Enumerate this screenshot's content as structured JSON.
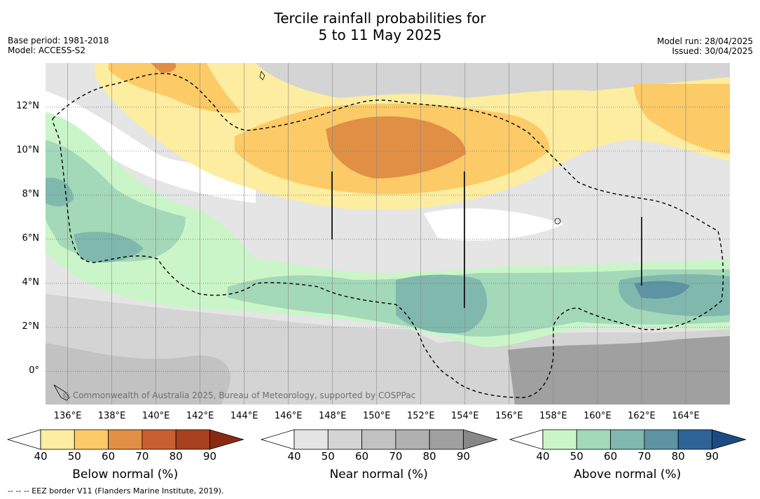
{
  "header": {
    "title_line1": "Tercile rainfall probabilities for",
    "title_line2": "5 to 11 May 2025",
    "base_period": "Base period: 1981-2018",
    "model": "Model: ACCESS-S2",
    "model_run": "Model run: 28/04/2025",
    "issued": "Issued: 30/04/2025"
  },
  "map": {
    "lon_range": [
      135,
      166
    ],
    "lat_range": [
      -1.5,
      14
    ],
    "lat_labels": [
      "12°N",
      "10°N",
      "8°N",
      "6°N",
      "4°N",
      "2°N",
      "0°"
    ],
    "lat_values": [
      12,
      10,
      8,
      6,
      4,
      2,
      0
    ],
    "lon_labels": [
      "136°E",
      "138°E",
      "140°E",
      "142°E",
      "144°E",
      "146°E",
      "148°E",
      "150°E",
      "152°E",
      "154°E",
      "156°E",
      "158°E",
      "160°E",
      "162°E",
      "164°E"
    ],
    "lon_values": [
      136,
      138,
      140,
      142,
      144,
      146,
      148,
      150,
      152,
      154,
      156,
      158,
      160,
      162,
      164
    ],
    "copyright": "© Commonwealth of Australia 2025, Bureau of Meteorology, supported by COSPPac",
    "palette": {
      "below": [
        "#fdeda0",
        "#fcca66",
        "#e08f45",
        "#c75f31",
        "#a9401f",
        "#8a2a12"
      ],
      "near": [
        "#e5e5e5",
        "#d4d4d4",
        "#c2c2c2",
        "#b0b0b0",
        "#a0a0a0",
        "#888888"
      ],
      "above": [
        "#caf5c8",
        "#a3d8b8",
        "#80b8ae",
        "#5d93a3",
        "#2e6398",
        "#1c4a82"
      ]
    }
  },
  "colorbars": [
    {
      "title": "Below normal (%)",
      "ticks": [
        "40",
        "50",
        "60",
        "70",
        "80",
        "90"
      ]
    },
    {
      "title": "Near normal (%)",
      "ticks": [
        "40",
        "50",
        "60",
        "70",
        "80",
        "90"
      ]
    },
    {
      "title": "Above normal (%)",
      "ticks": [
        "40",
        "50",
        "60",
        "70",
        "80",
        "90"
      ]
    }
  ],
  "footnote": "-- -- -- EEZ border V11 (Flanders Marine Institute, 2019)."
}
